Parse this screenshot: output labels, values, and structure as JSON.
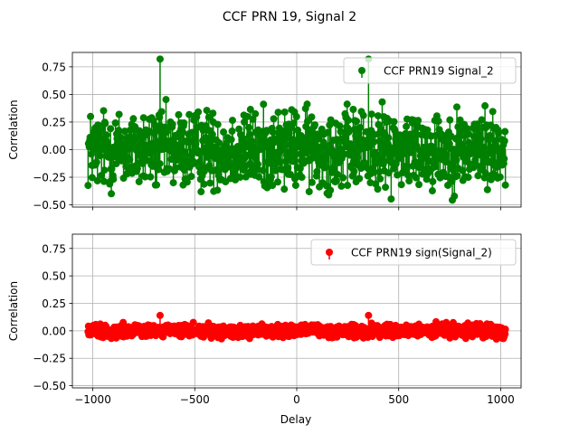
{
  "chart_data": {
    "type": "stem",
    "title": "CCF PRN 19, Signal 2",
    "xlabel": "Delay",
    "xlim": [
      -1100,
      1100
    ],
    "xticks": [
      -1000,
      -500,
      0,
      500,
      1000
    ],
    "xtick_labels": [
      "−1000",
      "−500",
      "0",
      "500",
      "1000"
    ],
    "grid": true,
    "sharex": true,
    "axes": [
      {
        "ylabel": "Correlation",
        "ylim": [
          -0.52,
          0.88
        ],
        "yticks": [
          -0.5,
          -0.25,
          0.0,
          0.25,
          0.5,
          0.75
        ],
        "ytick_labels": [
          "−0.50",
          "−0.25",
          "0.00",
          "0.25",
          "0.50",
          "0.75"
        ],
        "legend": "top-right",
        "show_xtick_labels": false,
        "series": [
          {
            "name": "CCF PRN19 Signal_2",
            "color": "#008000",
            "marker": "circle",
            "x_range": [
              -1023,
              1023
            ],
            "baseline": 0,
            "peaks": [
              {
                "x": -670,
                "y": 0.82
              },
              {
                "x": 352,
                "y": 0.82
              }
            ],
            "noise_spread": 0.47
          }
        ]
      },
      {
        "ylabel": "Correlation",
        "ylim": [
          -0.52,
          0.88
        ],
        "yticks": [
          -0.5,
          -0.25,
          0.0,
          0.25,
          0.5,
          0.75
        ],
        "ytick_labels": [
          "−0.50",
          "−0.25",
          "0.00",
          "0.25",
          "0.50",
          "0.75"
        ],
        "legend": "top-right",
        "show_xtick_labels": true,
        "series": [
          {
            "name": "CCF PRN19 sign(Signal_2)",
            "color": "#ff0000",
            "marker": "circle",
            "x_range": [
              -1023,
              1023
            ],
            "baseline": 0,
            "peaks": [
              {
                "x": -670,
                "y": 0.14
              },
              {
                "x": 352,
                "y": 0.14
              }
            ],
            "noise_spread": 0.08
          }
        ]
      }
    ]
  }
}
